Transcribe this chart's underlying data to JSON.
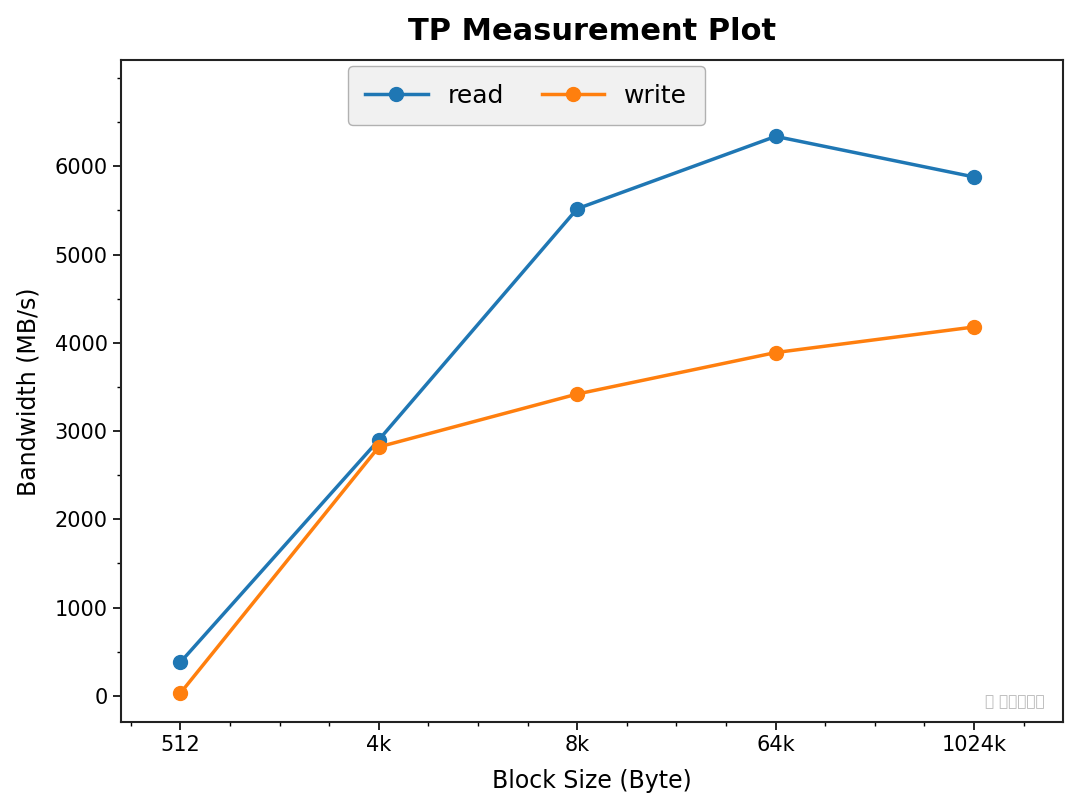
{
  "title": "TP Measurement Plot",
  "xlabel": "Block Size (Byte)",
  "ylabel": "Bandwidth (MB/s)",
  "x_labels": [
    "512",
    "4k",
    "8k",
    "64k",
    "1024k"
  ],
  "x_values": [
    0,
    1,
    2,
    3,
    4
  ],
  "read_values": [
    380,
    2900,
    5520,
    6340,
    5880
  ],
  "write_values": [
    30,
    2820,
    3420,
    3890,
    4180
  ],
  "read_color": "#1f77b4",
  "write_color": "#ff7f0e",
  "ylim": [
    -300,
    7200
  ],
  "yticks": [
    0,
    1000,
    2000,
    3000,
    4000,
    5000,
    6000
  ],
  "legend_labels": [
    "read",
    "write"
  ],
  "marker": "o",
  "linewidth": 2.5,
  "markersize": 10,
  "title_fontsize": 22,
  "label_fontsize": 17,
  "tick_fontsize": 15,
  "legend_fontsize": 18,
  "background_color": "#ffffff",
  "watermark": "值 什么值得买"
}
